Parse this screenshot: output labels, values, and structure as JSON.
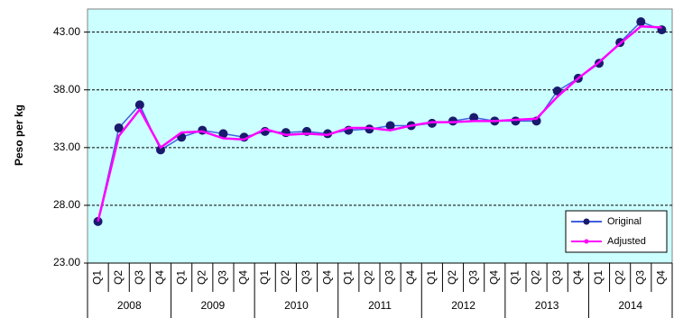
{
  "chart_data": {
    "type": "line",
    "ylabel": "Peso per kg",
    "categories": [
      "Q1",
      "Q2",
      "Q3",
      "Q4",
      "Q1",
      "Q2",
      "Q3",
      "Q4",
      "Q1",
      "Q2",
      "Q3",
      "Q4",
      "Q1",
      "Q2",
      "Q3",
      "Q4",
      "Q1",
      "Q2",
      "Q3",
      "Q4",
      "Q1",
      "Q2",
      "Q3",
      "Q4",
      "Q1",
      "Q2",
      "Q3",
      "Q4"
    ],
    "years": [
      "2008",
      "2009",
      "2010",
      "2011",
      "2012",
      "2013",
      "2014"
    ],
    "series": [
      {
        "name": "Original",
        "color": "#3f5fe0",
        "marker_color": "#1a1a6e",
        "values": [
          26.6,
          34.7,
          36.7,
          32.8,
          33.9,
          34.5,
          34.2,
          33.9,
          34.4,
          34.3,
          34.4,
          34.2,
          34.5,
          34.6,
          34.9,
          34.9,
          35.1,
          35.3,
          35.6,
          35.3,
          35.3,
          35.3,
          37.9,
          39.0,
          40.3,
          42.1,
          43.9,
          43.2
        ]
      },
      {
        "name": "Adjusted",
        "color": "#ff00ff",
        "values": [
          26.6,
          34.0,
          36.3,
          33.0,
          34.3,
          34.4,
          33.8,
          33.7,
          34.6,
          34.1,
          34.2,
          34.1,
          34.7,
          34.7,
          34.5,
          34.9,
          35.2,
          35.2,
          35.3,
          35.3,
          35.4,
          35.5,
          37.4,
          39.0,
          40.4,
          42.0,
          43.5,
          43.4
        ]
      }
    ],
    "ylim": [
      23,
      45
    ],
    "yticks": [
      {
        "value": 23,
        "label": "23.00"
      },
      {
        "value": 28,
        "label": "28.00"
      },
      {
        "value": 33,
        "label": "33.00"
      },
      {
        "value": 38,
        "label": "38.00"
      },
      {
        "value": 43,
        "label": "43.00"
      }
    ],
    "grid": true,
    "legend": "lower right",
    "background": "#ccffff"
  }
}
